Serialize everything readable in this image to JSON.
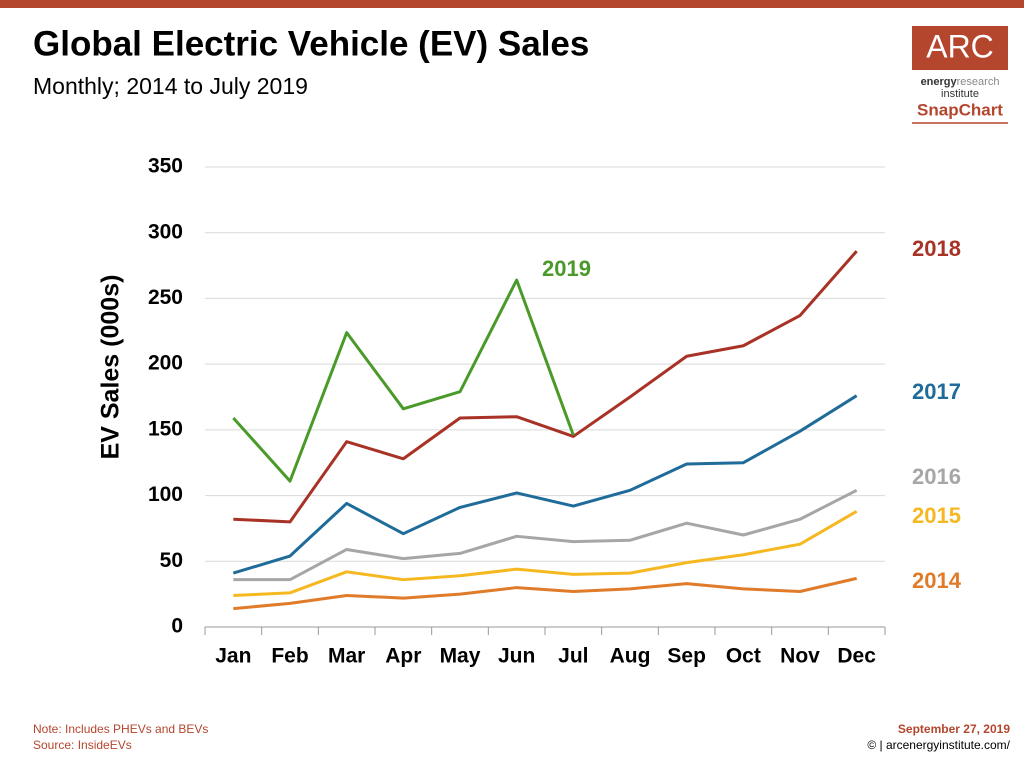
{
  "chart_data": {
    "type": "line",
    "title": "Global Electric Vehicle (EV) Sales",
    "subtitle": "Monthly; 2014 to July 2019",
    "y_label": "EV Sales (000s)",
    "categories": [
      "Jan",
      "Feb",
      "Mar",
      "Apr",
      "May",
      "Jun",
      "Jul",
      "Aug",
      "Sep",
      "Oct",
      "Nov",
      "Dec"
    ],
    "series": [
      {
        "name": "2014",
        "color": "#e07b2a",
        "values": [
          14,
          18,
          24,
          22,
          25,
          30,
          27,
          29,
          33,
          29,
          27,
          37
        ]
      },
      {
        "name": "2015",
        "color": "#f5b820",
        "values": [
          24,
          26,
          42,
          36,
          39,
          44,
          40,
          41,
          49,
          55,
          63,
          88
        ]
      },
      {
        "name": "2016",
        "color": "#a6a6a6",
        "values": [
          36,
          36,
          59,
          52,
          56,
          69,
          65,
          66,
          79,
          70,
          82,
          104
        ]
      },
      {
        "name": "2017",
        "color": "#1f6b99",
        "values": [
          41,
          54,
          94,
          71,
          91,
          102,
          92,
          104,
          124,
          125,
          149,
          176
        ]
      },
      {
        "name": "2018",
        "color": "#a93226",
        "values": [
          82,
          80,
          141,
          128,
          159,
          160,
          145,
          175,
          206,
          214,
          237,
          286
        ]
      },
      {
        "name": "2019",
        "color": "#4a9a2a",
        "values": [
          159,
          111,
          224,
          166,
          179,
          264,
          146,
          null,
          null,
          null,
          null,
          null
        ]
      }
    ],
    "ylim": [
      0,
      350
    ],
    "yticks": [
      0,
      50,
      100,
      150,
      200,
      250,
      300,
      350
    ],
    "grid": true,
    "notes": [
      "Note: Includes PHEVs and BEVs",
      "Source: InsideEVs"
    ],
    "date": "September 27, 2019",
    "credit": "© | arcenergyinstitute.com/"
  },
  "logo": {
    "name": "ARC",
    "energy": "energy",
    "research": "research",
    "institute": "institute",
    "tag": "SnapChart"
  }
}
